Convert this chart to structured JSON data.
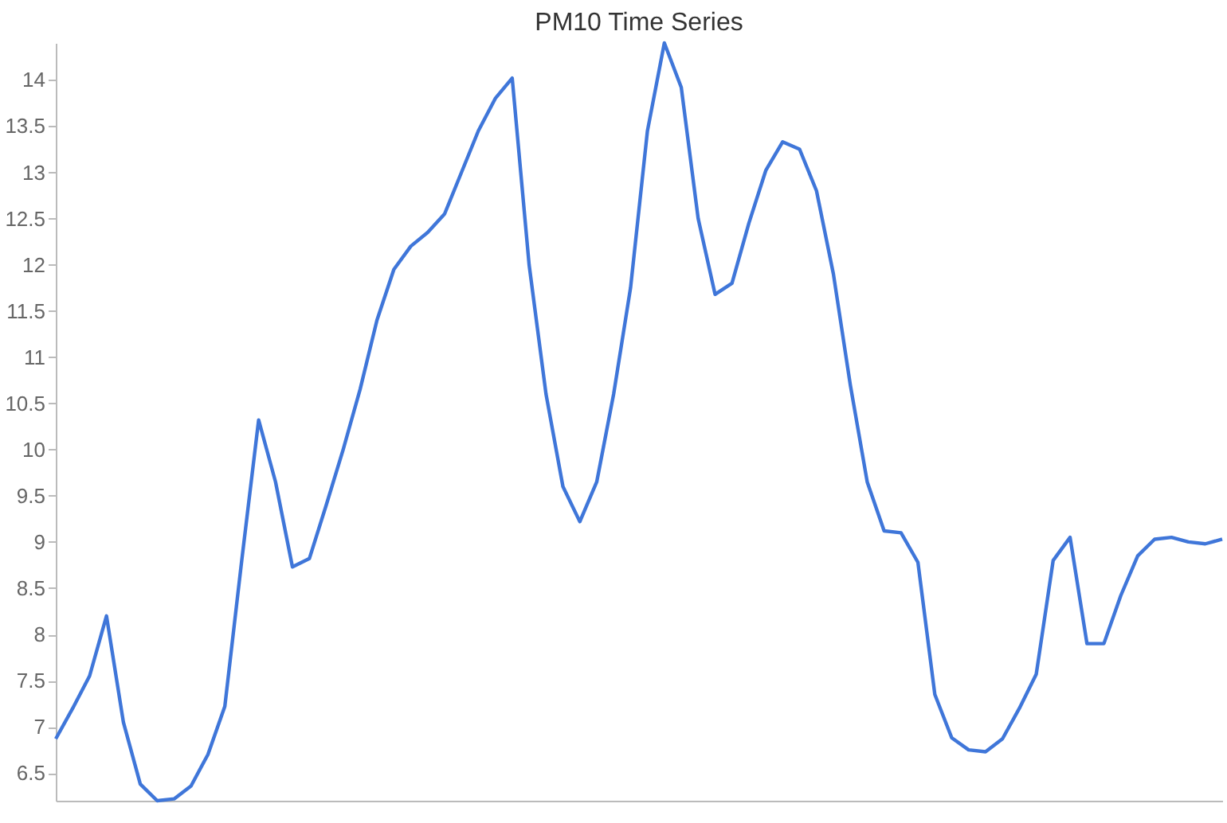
{
  "chart_data": {
    "type": "line",
    "title": "PM10 Time Series",
    "categories": [
      null,
      null,
      null,
      null,
      null,
      null,
      null,
      null,
      null,
      null,
      null,
      null,
      null,
      null,
      null,
      null,
      null,
      null,
      null,
      null,
      null,
      null,
      null,
      null,
      null,
      null,
      null,
      null,
      null,
      null,
      null,
      null,
      null,
      null,
      null,
      null,
      null,
      null,
      null,
      null,
      null,
      null,
      null,
      null,
      null,
      null,
      null,
      null,
      null,
      null,
      null,
      null,
      null,
      null,
      null,
      null,
      null,
      null,
      null,
      null,
      null,
      null,
      null,
      null,
      null,
      null,
      null,
      null,
      null,
      null
    ],
    "series": [
      {
        "color": "#3f76d9",
        "values": [
          6.87,
          7.2,
          7.55,
          8.2,
          7.05,
          6.38,
          6.2,
          6.22,
          6.36,
          6.7,
          7.22,
          8.8,
          10.32,
          9.65,
          8.73,
          8.82,
          9.4,
          10.0,
          10.65,
          11.4,
          11.95,
          12.2,
          12.35,
          12.55,
          13.0,
          13.45,
          13.8,
          14.02,
          12.0,
          10.6,
          9.6,
          9.22,
          9.65,
          10.6,
          11.75,
          13.45,
          14.4,
          13.92,
          12.5,
          11.68,
          11.8,
          12.45,
          13.02,
          13.33,
          13.25,
          12.8,
          11.9,
          10.7,
          9.65,
          9.12,
          9.1,
          8.78,
          7.35,
          6.88,
          6.75,
          6.73,
          6.87,
          7.2,
          7.57,
          8.8,
          9.05,
          7.9,
          7.9,
          8.42,
          8.85,
          9.03,
          9.05,
          9.0,
          8.98,
          9.03
        ]
      }
    ],
    "ylim": [
      6.2,
      14.4
    ],
    "yticks": [
      6.5,
      7,
      7.5,
      8,
      8.5,
      9,
      9.5,
      10,
      10.5,
      11,
      11.5,
      12,
      12.5,
      13,
      13.5,
      14
    ],
    "grid": false,
    "legend": false,
    "tick_labels": "y",
    "marker": "none",
    "line_style": "solid"
  }
}
